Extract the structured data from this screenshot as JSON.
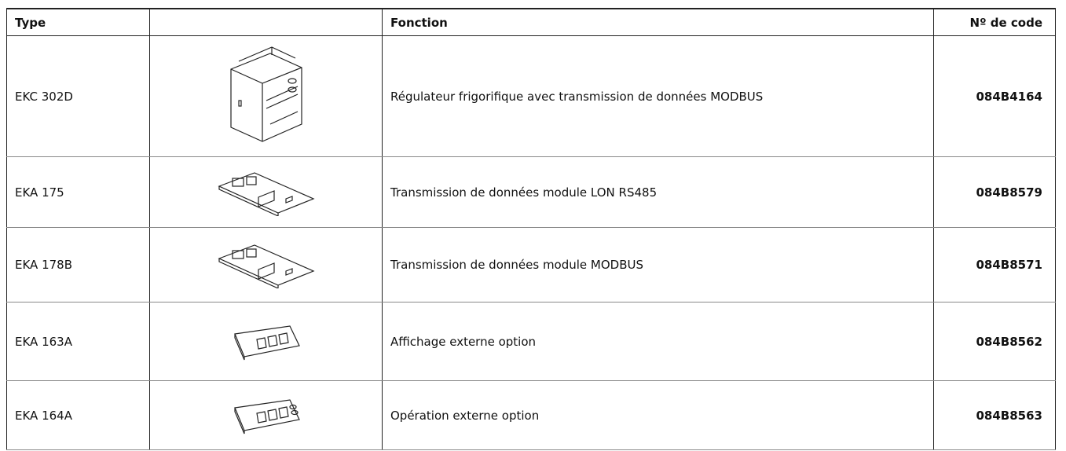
{
  "table": {
    "header": {
      "type": "Type",
      "function": "Fonction",
      "code": "Nº de code"
    },
    "rows": [
      {
        "type": "EKC 302D",
        "function": "Régulateur frigorifique avec transmission de données  MODBUS",
        "code": "084B4164"
      },
      {
        "type": "EKA 175",
        "function": "Transmission de données module LON RS485",
        "code": "084B8579"
      },
      {
        "type": "EKA 178B",
        "function": "Transmission de données module MODBUS",
        "code": "084B8571"
      },
      {
        "type": "EKA 163A",
        "function": "Affichage externe option",
        "code": "084B8562"
      },
      {
        "type": "EKA 164A",
        "function": "Opération externe option",
        "code": "084B8563"
      }
    ]
  }
}
